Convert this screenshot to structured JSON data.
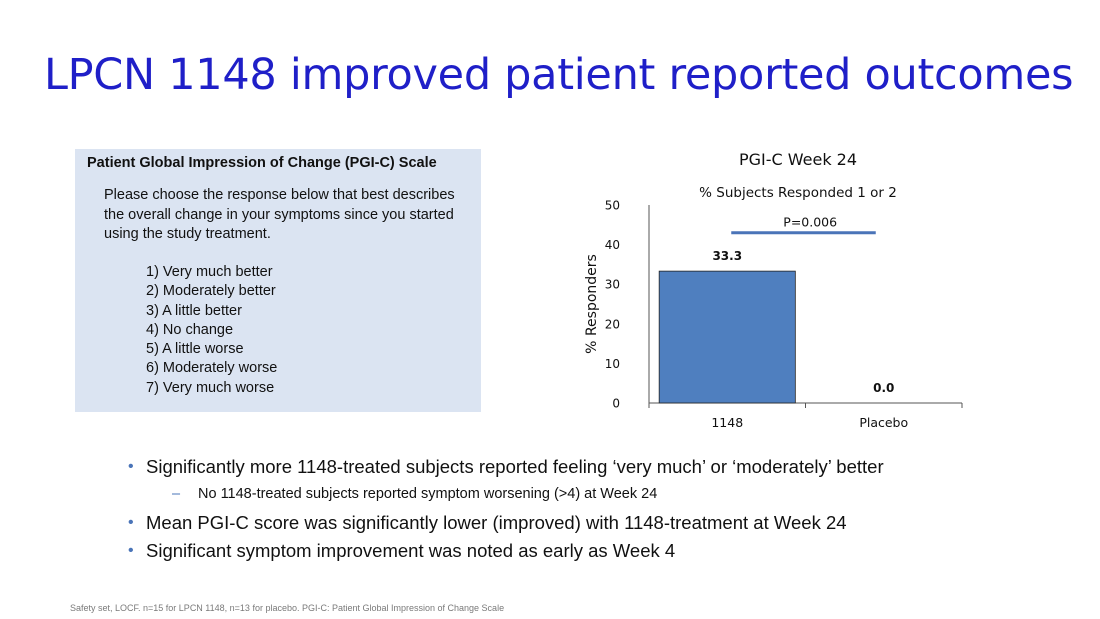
{
  "slide": {
    "title": "LPCN 1148 improved patient reported outcomes",
    "footnote": "Safety set, LOCF. n=15 for LPCN 1148, n=13 for placebo. PGI-C: Patient Global Impression of Change Scale"
  },
  "pgic_box": {
    "heading": "Patient Global Impression of Change (PGI-C) Scale",
    "prompt": "Please choose the response below that best describes the overall change in your symptoms since you started using the study treatment.",
    "options": [
      "1) Very much better",
      "2) Moderately better",
      "3) A little better",
      "4) No change",
      "5) A little worse",
      "6) Moderately worse",
      "7) Very much worse"
    ]
  },
  "bullets": {
    "b1": "Significantly more 1148-treated subjects reported feeling ‘very much’ or ‘moderately’ better",
    "b1_sub": "No 1148-treated subjects reported symptom worsening (>4) at Week 24",
    "b2": "Mean PGI-C score was significantly lower (improved) with 1148-treatment at Week 24",
    "b3": "Significant symptom improvement was noted as early as Week 4",
    "bullet_glyph": "•",
    "dash_glyph": "–"
  },
  "chart_data": {
    "type": "bar",
    "title": "PGI-C Week 24",
    "subtitle": "% Subjects Responded 1 or 2",
    "categories": [
      "1148",
      "Placebo"
    ],
    "values": [
      33.3,
      0.0
    ],
    "data_labels": [
      "33.3",
      "0.0"
    ],
    "ylabel": "% Responders",
    "xlabel": "",
    "ylim": [
      0,
      50
    ],
    "yticks": [
      "0",
      "10",
      "20",
      "30",
      "40",
      "50"
    ],
    "annotation": "P=0.006",
    "annotation_y": 43,
    "bar_color": "#4f7fbf",
    "annotation_color": "#4a74b8",
    "grid": false
  }
}
